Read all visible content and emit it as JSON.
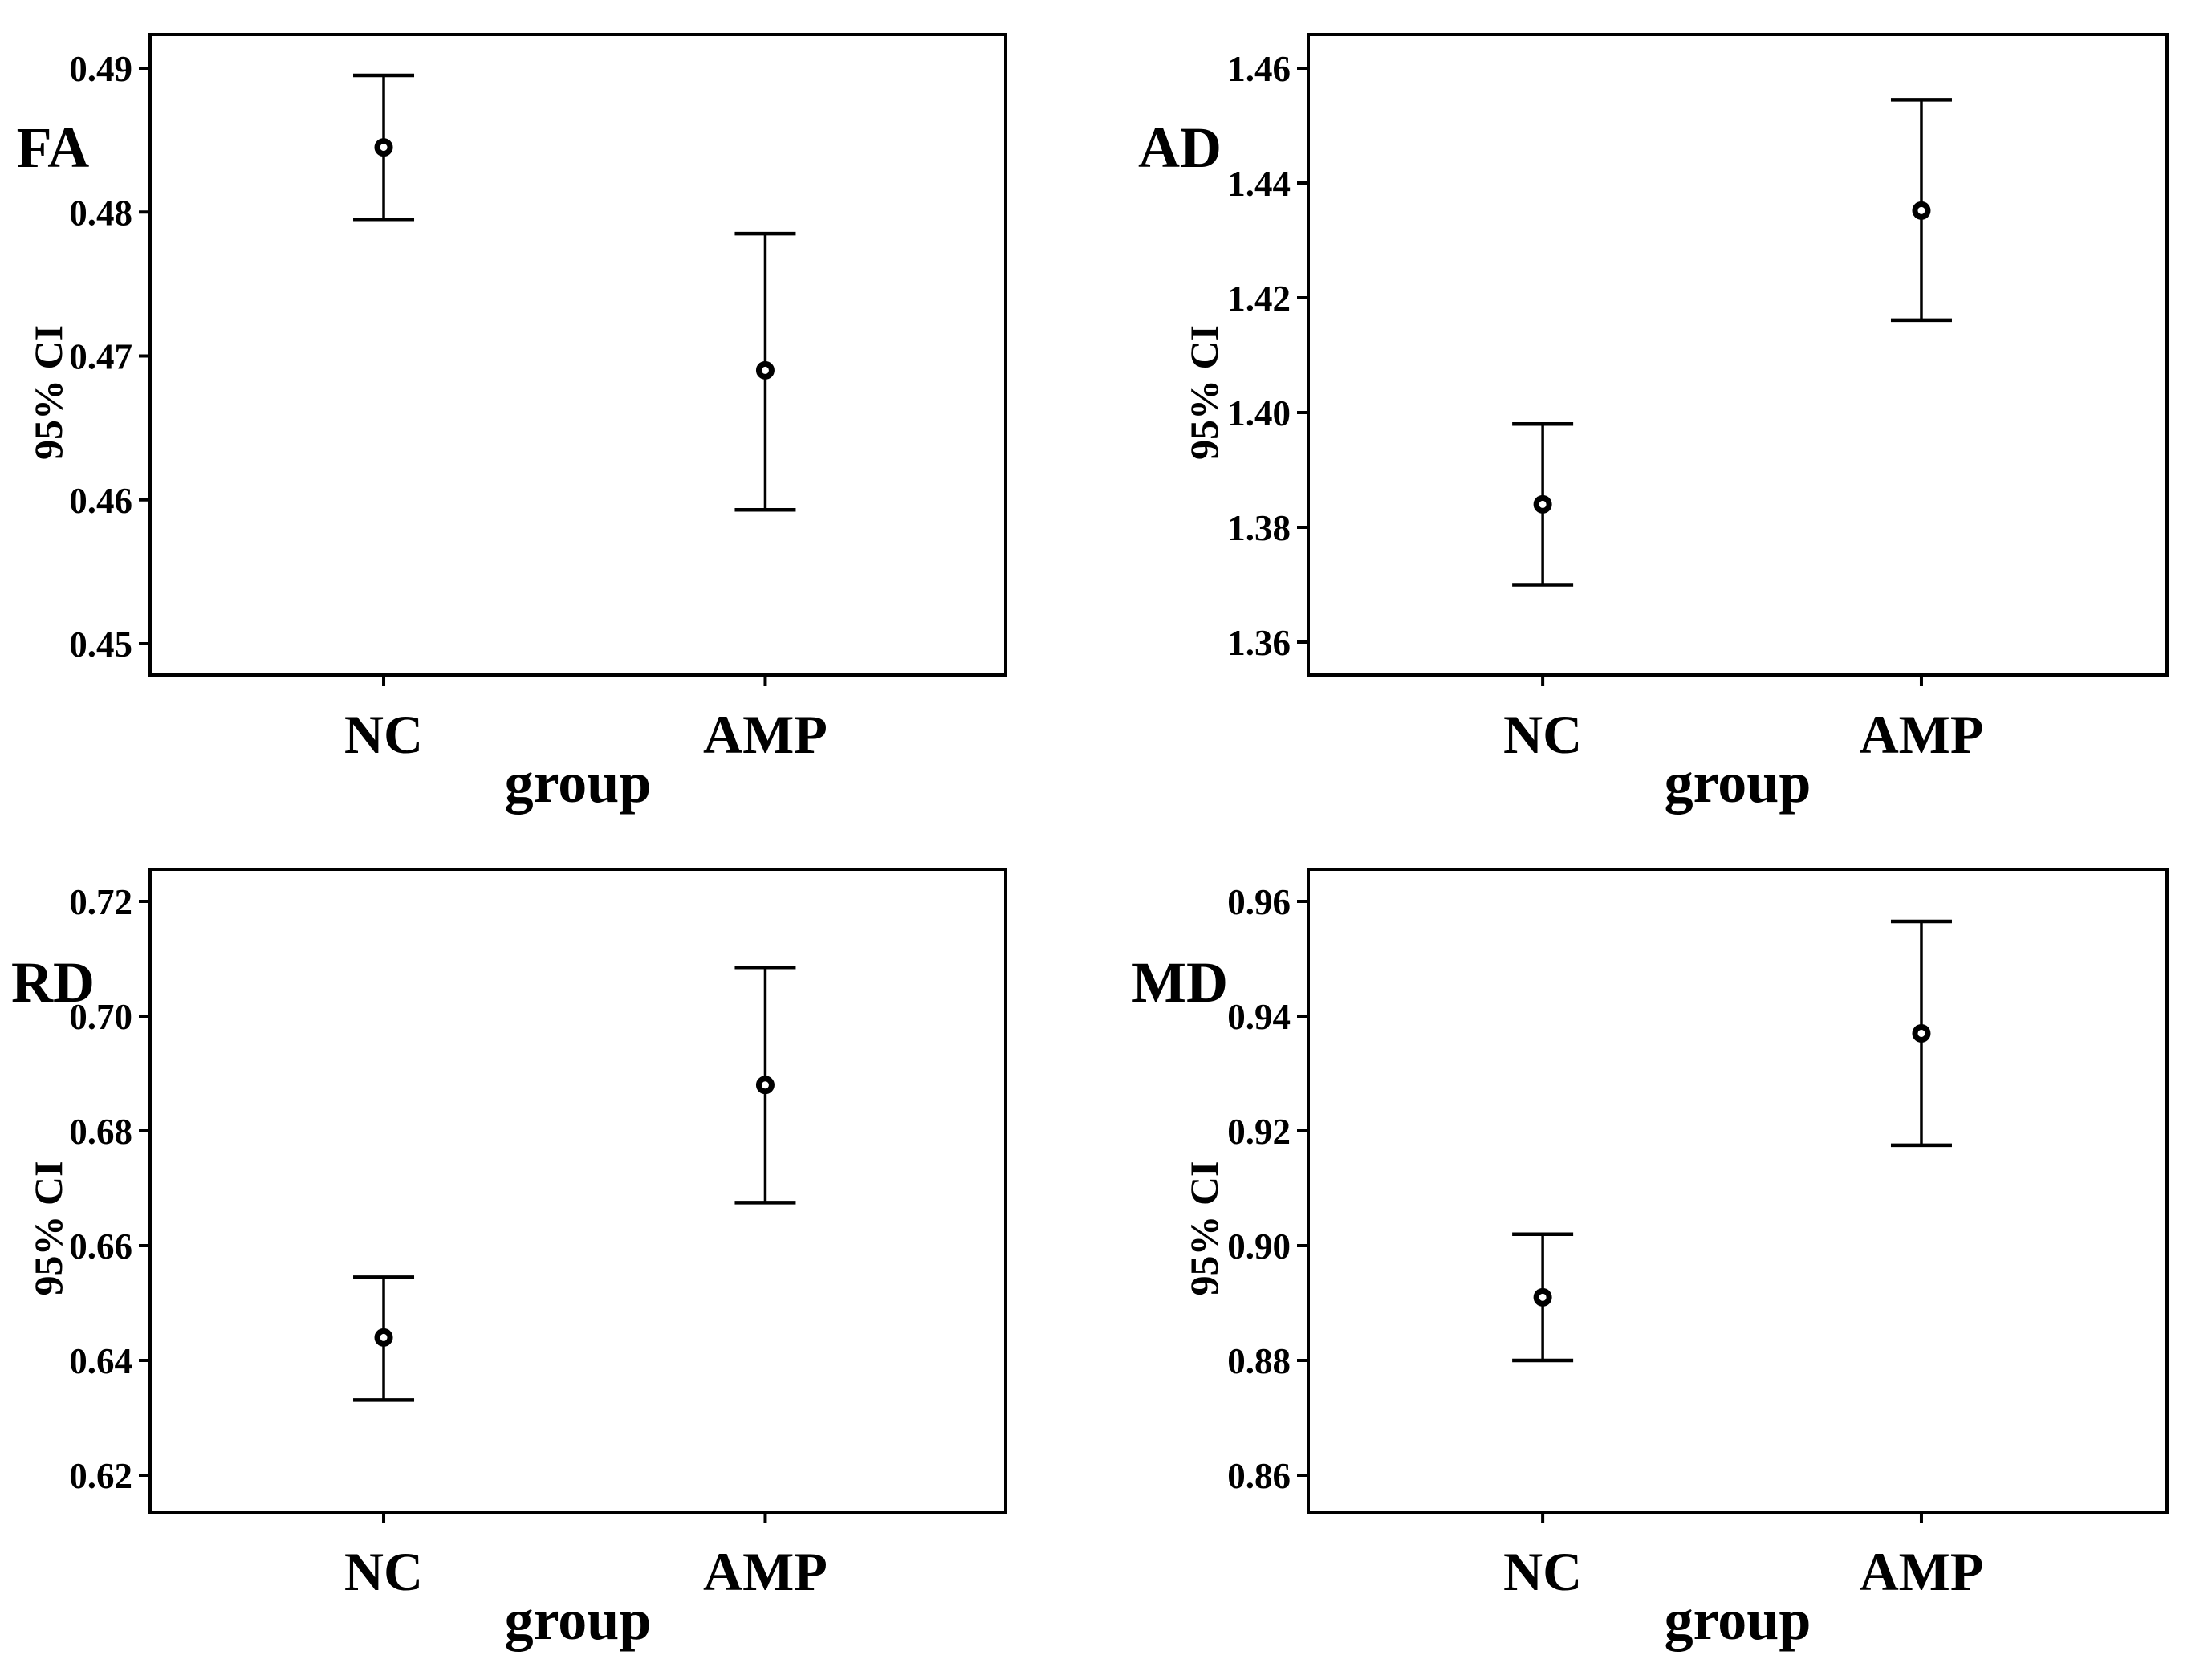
{
  "figure": {
    "background": "#ffffff",
    "ink_color": "#000000",
    "layout_note": "2x2 grid of mean and 95% confidence-interval error bar plots",
    "panel_order": [
      "FA",
      "AD",
      "RD",
      "MD"
    ]
  },
  "axes": {
    "x_title": "group",
    "y_title": "95% CI",
    "categories": [
      "NC",
      "AMP"
    ]
  },
  "chart_data": [
    {
      "type": "scatter",
      "subtype": "mean-ci-errorbar",
      "panel_label": "FA",
      "xlabel": "group",
      "ylabel": "95% CI",
      "categories": [
        "NC",
        "AMP"
      ],
      "yticks": [
        0.49,
        0.48,
        0.47,
        0.46,
        0.45
      ],
      "ytick_labels": [
        "0.49",
        "0.48",
        "0.47",
        "0.46",
        "0.45"
      ],
      "grid": false,
      "series": [
        {
          "name": "NC",
          "mean": 0.4845,
          "ci_low": 0.4795,
          "ci_high": 0.4895
        },
        {
          "name": "AMP",
          "mean": 0.469,
          "ci_low": 0.4593,
          "ci_high": 0.4785
        }
      ]
    },
    {
      "type": "scatter",
      "subtype": "mean-ci-errorbar",
      "panel_label": "AD",
      "xlabel": "group",
      "ylabel": "95% CI",
      "categories": [
        "NC",
        "AMP"
      ],
      "yticks": [
        1.46,
        1.44,
        1.42,
        1.4,
        1.38,
        1.36
      ],
      "ytick_labels": [
        "1.46",
        "1.44",
        "1.42",
        "1.40",
        "1.38",
        "1.36"
      ],
      "grid": false,
      "series": [
        {
          "name": "NC",
          "mean": 1.384,
          "ci_low": 1.37,
          "ci_high": 1.398
        },
        {
          "name": "AMP",
          "mean": 1.4352,
          "ci_low": 1.4161,
          "ci_high": 1.4545
        }
      ]
    },
    {
      "type": "scatter",
      "subtype": "mean-ci-errorbar",
      "panel_label": "RD",
      "xlabel": "group",
      "ylabel": "95% CI",
      "categories": [
        "NC",
        "AMP"
      ],
      "yticks": [
        0.72,
        0.7,
        0.68,
        0.66,
        0.64,
        0.62
      ],
      "ytick_labels": [
        "0.72",
        "0.70",
        "0.68",
        "0.66",
        "0.64",
        "0.62"
      ],
      "grid": false,
      "series": [
        {
          "name": "NC",
          "mean": 0.644,
          "ci_low": 0.6331,
          "ci_high": 0.6545
        },
        {
          "name": "AMP",
          "mean": 0.688,
          "ci_low": 0.6675,
          "ci_high": 0.7085
        }
      ]
    },
    {
      "type": "scatter",
      "subtype": "mean-ci-errorbar",
      "panel_label": "MD",
      "xlabel": "group",
      "ylabel": "95% CI",
      "categories": [
        "NC",
        "AMP"
      ],
      "yticks": [
        0.96,
        0.94,
        0.92,
        0.9,
        0.88,
        0.86
      ],
      "ytick_labels": [
        "0.96",
        "0.94",
        "0.92",
        "0.90",
        "0.88",
        "0.86"
      ],
      "grid": false,
      "series": [
        {
          "name": "NC",
          "mean": 0.891,
          "ci_low": 0.88,
          "ci_high": 0.902
        },
        {
          "name": "AMP",
          "mean": 0.937,
          "ci_low": 0.9175,
          "ci_high": 0.9565
        }
      ]
    }
  ]
}
